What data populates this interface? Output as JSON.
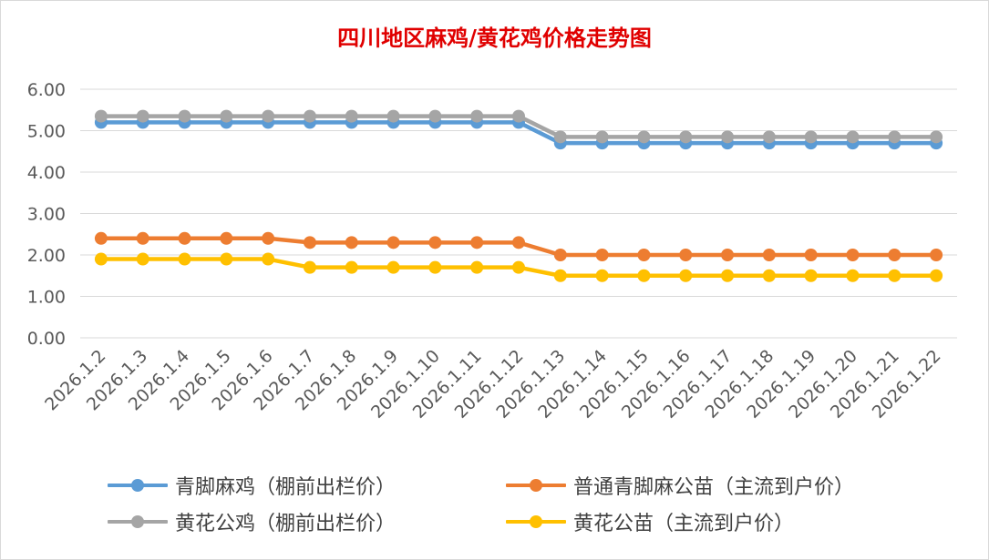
{
  "title": "四川地区麻鸡/黄花鸡价格走势图",
  "colors": {
    "blue": "#5b9bd5",
    "orange": "#ed7d31",
    "gray": "#a5a5a5",
    "yellow": "#ffc000",
    "title": "#e00000",
    "grid": "#d9d9d9",
    "axis_text": "#595959"
  },
  "chart_data": {
    "type": "line",
    "title": "四川地区麻鸡/黄花鸡价格走势图",
    "xlabel": "",
    "ylabel": "",
    "ylim": [
      0,
      6
    ],
    "yticks": [
      "0.00",
      "1.00",
      "2.00",
      "3.00",
      "4.00",
      "5.00",
      "6.00"
    ],
    "grid": true,
    "legend_position": "bottom",
    "categories": [
      "2026.1.2",
      "2026.1.3",
      "2026.1.4",
      "2026.1.5",
      "2026.1.6",
      "2026.1.7",
      "2026.1.8",
      "2026.1.9",
      "2026.1.10",
      "2026.1.11",
      "2026.1.12",
      "2026.1.13",
      "2026.1.14",
      "2026.1.15",
      "2026.1.16",
      "2026.1.17",
      "2026.1.18",
      "2026.1.19",
      "2026.1.20",
      "2026.1.21",
      "2026.1.22"
    ],
    "series": [
      {
        "name": "青脚麻鸡（棚前出栏价）",
        "color": "#5b9bd5",
        "values": [
          5.2,
          5.2,
          5.2,
          5.2,
          5.2,
          5.2,
          5.2,
          5.2,
          5.2,
          5.2,
          5.2,
          4.7,
          4.7,
          4.7,
          4.7,
          4.7,
          4.7,
          4.7,
          4.7,
          4.7,
          4.7
        ]
      },
      {
        "name": "黄花公鸡（棚前出栏价）",
        "color": "#a5a5a5",
        "values": [
          5.35,
          5.35,
          5.35,
          5.35,
          5.35,
          5.35,
          5.35,
          5.35,
          5.35,
          5.35,
          5.35,
          4.85,
          4.85,
          4.85,
          4.85,
          4.85,
          4.85,
          4.85,
          4.85,
          4.85,
          4.85
        ]
      },
      {
        "name": "普通青脚麻公苗（主流到户价）",
        "color": "#ed7d31",
        "values": [
          2.4,
          2.4,
          2.4,
          2.4,
          2.4,
          2.3,
          2.3,
          2.3,
          2.3,
          2.3,
          2.3,
          2.0,
          2.0,
          2.0,
          2.0,
          2.0,
          2.0,
          2.0,
          2.0,
          2.0,
          2.0
        ]
      },
      {
        "name": "黄花公苗（主流到户价）",
        "color": "#ffc000",
        "values": [
          1.9,
          1.9,
          1.9,
          1.9,
          1.9,
          1.7,
          1.7,
          1.7,
          1.7,
          1.7,
          1.7,
          1.5,
          1.5,
          1.5,
          1.5,
          1.5,
          1.5,
          1.5,
          1.5,
          1.5,
          1.5
        ]
      }
    ]
  },
  "legend": [
    {
      "label": "青脚麻鸡（棚前出栏价）",
      "color": "#5b9bd5"
    },
    {
      "label": "普通青脚麻公苗（主流到户价）",
      "color": "#ed7d31"
    },
    {
      "label": "黄花公鸡（棚前出栏价）",
      "color": "#a5a5a5"
    },
    {
      "label": "黄花公苗（主流到户价）",
      "color": "#ffc000"
    }
  ]
}
